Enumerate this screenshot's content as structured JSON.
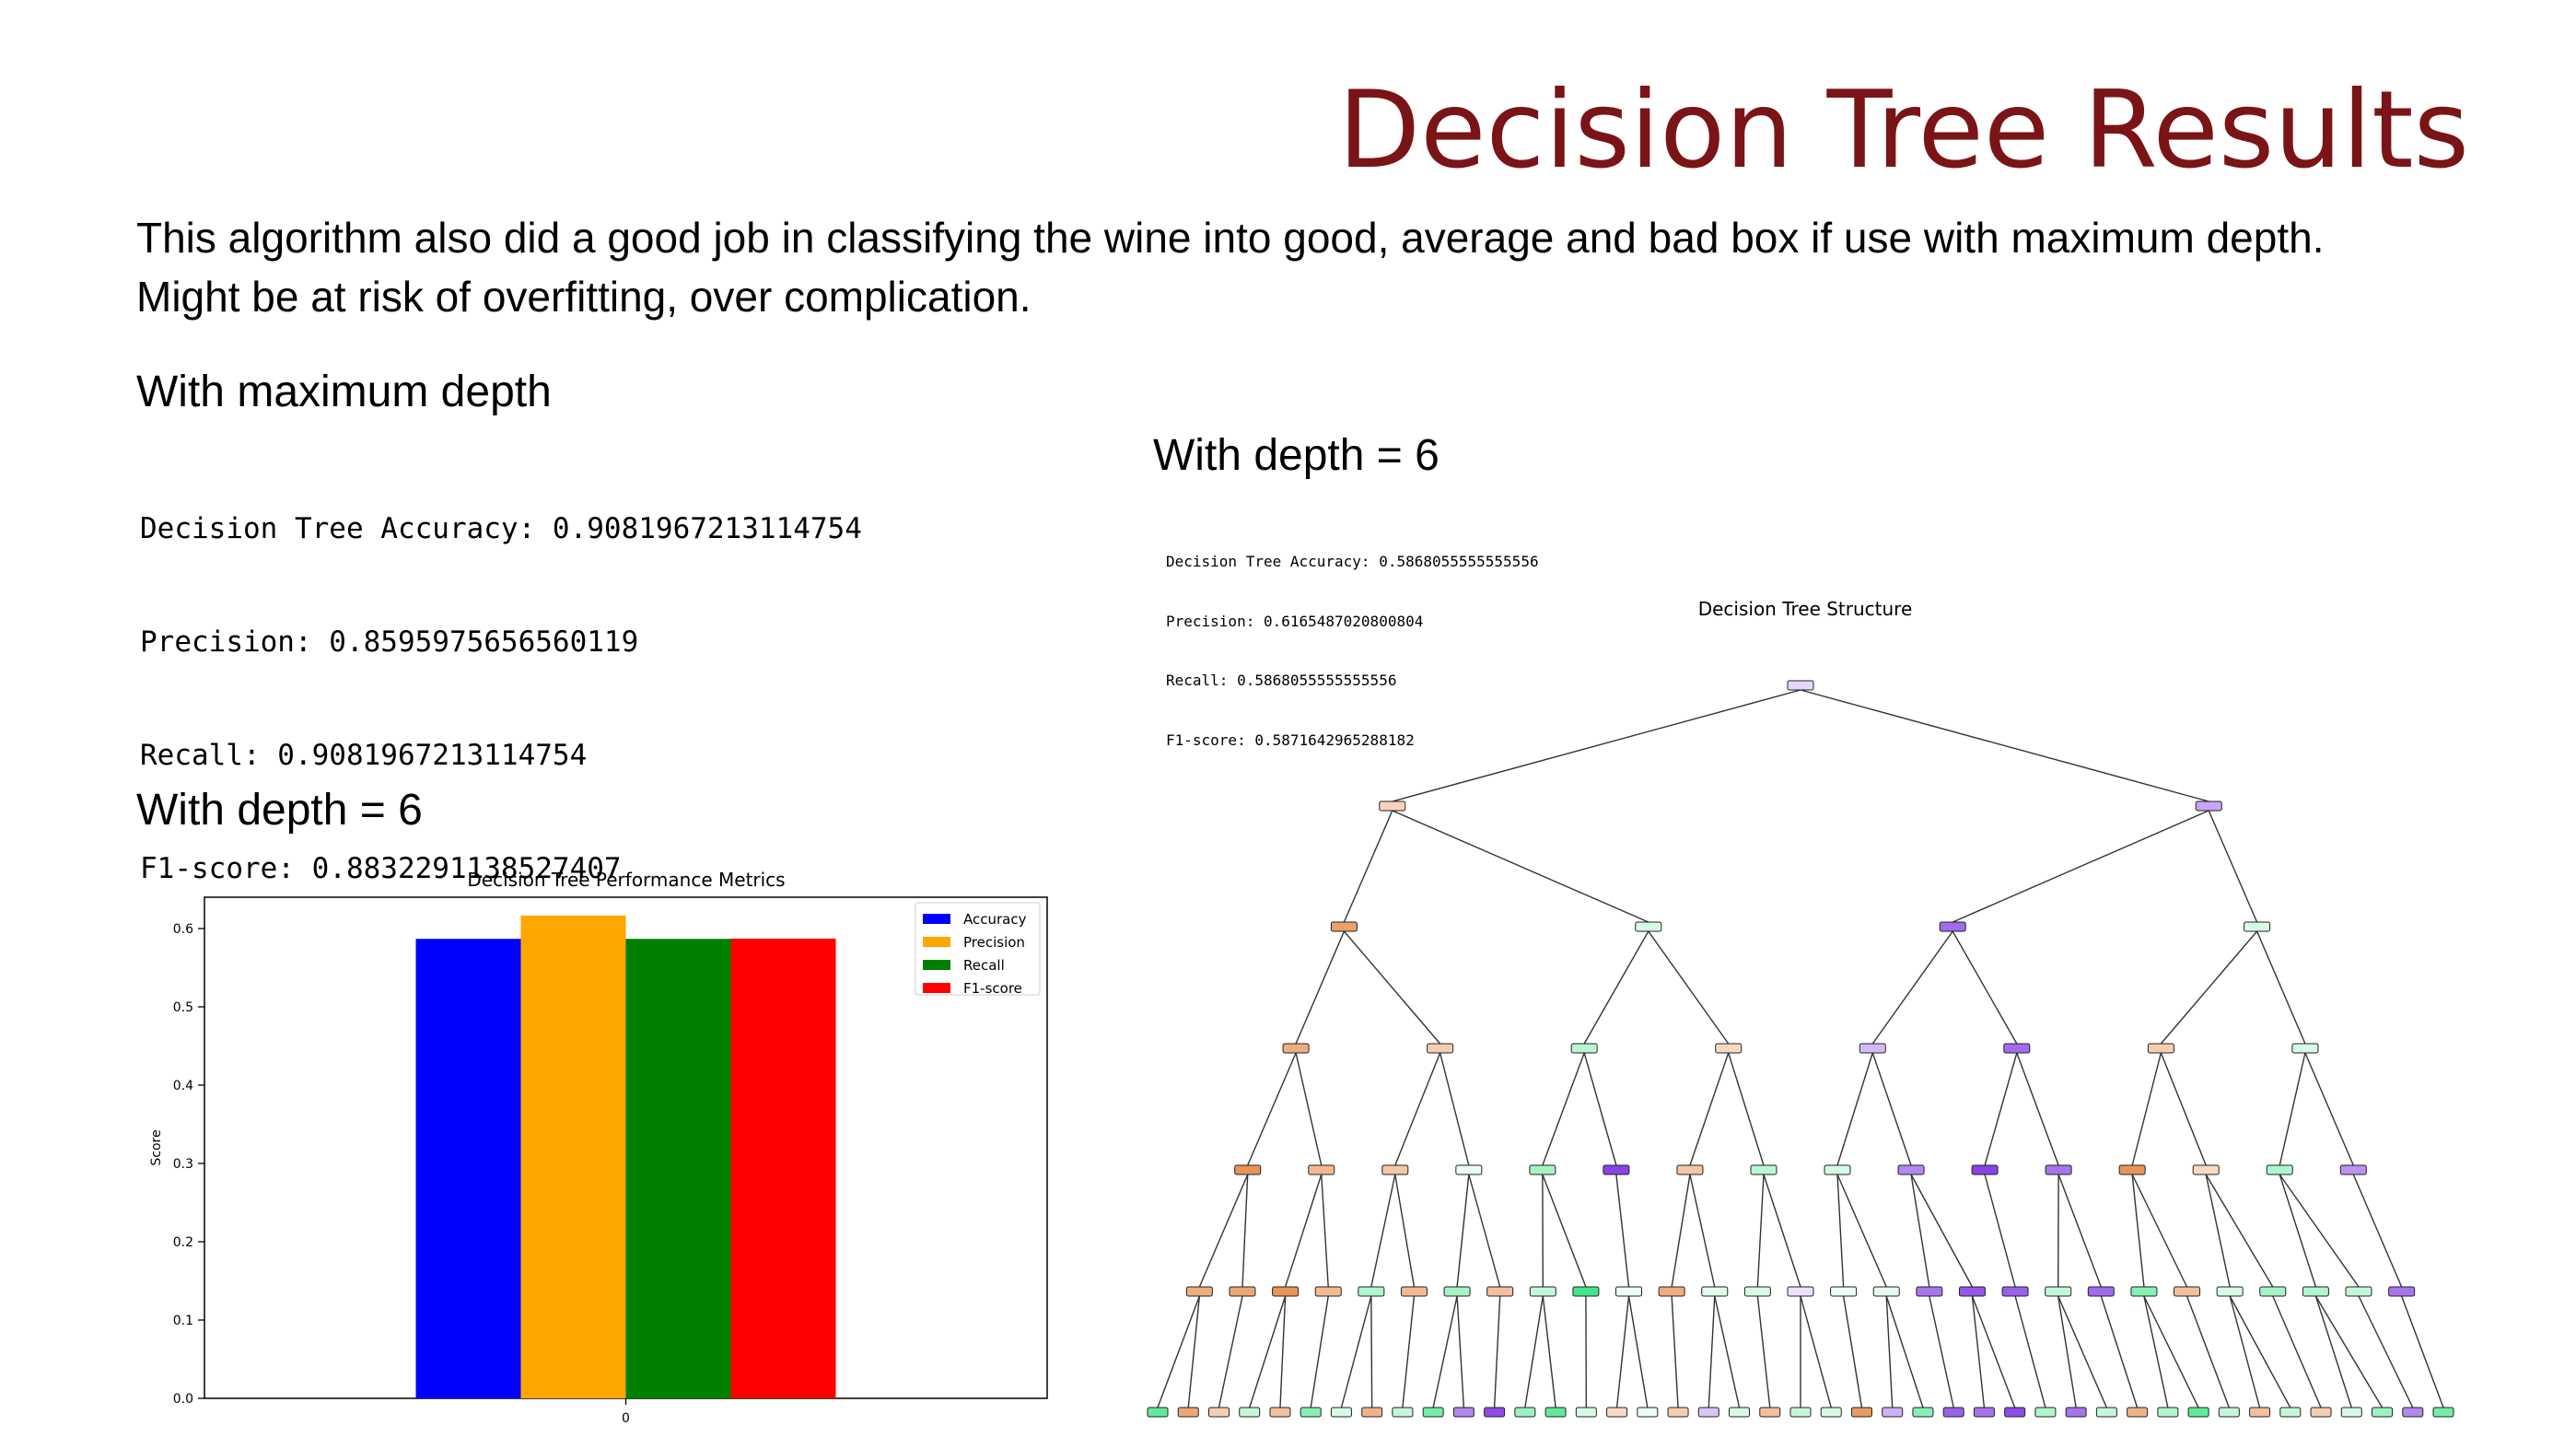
{
  "slide": {
    "title": "Decision Tree Results",
    "intro_line1": "This algorithm also did a good job in classifying the wine into good, average and bad box if use with maximum depth.",
    "intro_line2": "Might be at risk of overfitting, over complication.",
    "heading_max_depth": "With maximum depth",
    "heading_depth6_left": "With depth = 6",
    "heading_depth6_right": "With depth = 6",
    "max_depth_metrics": [
      "Decision Tree Accuracy: 0.9081967213114754",
      "Precision: 0.8595975656560119",
      "Recall: 0.9081967213114754",
      "F1-score: 0.8832291138527407"
    ],
    "depth6_metrics": [
      "Decision Tree Accuracy: 0.5868055555555556",
      "Precision: 0.6165487020800804",
      "Recall: 0.5868055555555556",
      "F1-score: 0.5871642965288182"
    ],
    "tree_title": "Decision Tree Structure"
  },
  "chart_data": {
    "type": "bar",
    "title": "Decision Tree Performance Metrics",
    "xlabel": "",
    "ylabel": "Score",
    "categories": [
      "0"
    ],
    "series": [
      {
        "name": "Accuracy",
        "values": [
          0.5868055555555556
        ],
        "color": "#0000ff"
      },
      {
        "name": "Precision",
        "values": [
          0.6165487020800804
        ],
        "color": "#ffa500"
      },
      {
        "name": "Recall",
        "values": [
          0.5868055555555556
        ],
        "color": "#008000"
      },
      {
        "name": "F1-score",
        "values": [
          0.5871642965288182
        ],
        "color": "#ff0000"
      }
    ],
    "ylim": [
      0,
      0.64
    ],
    "yticks": [
      "0.0",
      "0.1",
      "0.2",
      "0.3",
      "0.4",
      "0.5",
      "0.6"
    ],
    "legend": "top-right",
    "grid": false
  },
  "tree": {
    "colors": {
      "orange": "#e58139",
      "green": "#39e581",
      "purple": "#8139e5",
      "edge": "#333333"
    },
    "levels": [
      [
        [
          "p",
          0.2
        ]
      ],
      [
        [
          "o",
          0.35
        ],
        [
          "p",
          0.45
        ]
      ],
      [
        [
          "o",
          0.75
        ],
        [
          "g",
          0.2
        ],
        [
          "p",
          0.75
        ],
        [
          "g",
          0.2
        ]
      ],
      [
        [
          "o",
          0.65
        ],
        [
          "o",
          0.4
        ],
        [
          "g",
          0.35
        ],
        [
          "o",
          0.3
        ],
        [
          "p",
          0.35
        ],
        [
          "p",
          0.75
        ],
        [
          "o",
          0.4
        ],
        [
          "g",
          0.2
        ]
      ],
      [
        [
          "o",
          0.85
        ],
        [
          "o",
          0.55
        ],
        [
          "o",
          0.45
        ],
        [
          "g",
          0.1
        ],
        [
          "g",
          0.45
        ],
        [
          "p",
          0.95
        ],
        [
          "o",
          0.45
        ],
        [
          "g",
          0.35
        ],
        [
          "g",
          0.2
        ],
        [
          "p",
          0.6
        ],
        [
          "p",
          0.95
        ],
        [
          "p",
          0.7
        ],
        [
          "o",
          0.85
        ],
        [
          "o",
          0.3
        ],
        [
          "g",
          0.4
        ],
        [
          "p",
          0.55
        ]
      ],
      [
        [
          "o",
          0.65
        ],
        [
          "o",
          0.7
        ],
        [
          "o",
          0.85
        ],
        [
          "o",
          0.55
        ],
        [
          "g",
          0.4
        ],
        [
          "o",
          0.55
        ],
        [
          "g",
          0.45
        ],
        [
          "o",
          0.5
        ],
        [
          "g",
          0.3
        ],
        [
          "g",
          0.95
        ],
        [
          "g",
          0.1
        ],
        [
          "o",
          0.65
        ],
        [
          "g",
          0.15
        ],
        [
          "g",
          0.2
        ],
        [
          "p",
          0.15
        ],
        [
          "g",
          0.1
        ],
        [
          "g",
          0.15
        ],
        [
          "p",
          0.7
        ],
        [
          "p",
          0.85
        ],
        [
          "p",
          0.8
        ],
        [
          "g",
          0.3
        ],
        [
          "p",
          0.75
        ],
        [
          "g",
          0.6
        ],
        [
          "o",
          0.5
        ],
        [
          "g",
          0.2
        ],
        [
          "g",
          0.45
        ],
        [
          "g",
          0.4
        ],
        [
          "g",
          0.3
        ],
        [
          "p",
          0.7
        ]
      ],
      [
        [
          "g",
          0.8
        ],
        [
          "o",
          0.7
        ],
        [
          "o",
          0.4
        ],
        [
          "g",
          0.3
        ],
        [
          "o",
          0.5
        ],
        [
          "g",
          0.6
        ],
        [
          "g",
          0.2
        ],
        [
          "o",
          0.6
        ],
        [
          "g",
          0.3
        ],
        [
          "g",
          0.7
        ],
        [
          "p",
          0.6
        ],
        [
          "p",
          0.9
        ],
        [
          "g",
          0.5
        ],
        [
          "g",
          0.8
        ],
        [
          "g",
          0.2
        ],
        [
          "o",
          0.3
        ],
        [
          "g",
          0.1
        ],
        [
          "o",
          0.4
        ],
        [
          "p",
          0.3
        ],
        [
          "g",
          0.2
        ],
        [
          "o",
          0.5
        ],
        [
          "g",
          0.3
        ],
        [
          "g",
          0.2
        ],
        [
          "o",
          0.8
        ],
        [
          "p",
          0.4
        ],
        [
          "g",
          0.6
        ],
        [
          "p",
          0.8
        ],
        [
          "p",
          0.7
        ],
        [
          "p",
          0.9
        ],
        [
          "g",
          0.4
        ],
        [
          "p",
          0.7
        ],
        [
          "g",
          0.3
        ],
        [
          "o",
          0.6
        ],
        [
          "g",
          0.4
        ],
        [
          "g",
          0.8
        ],
        [
          "g",
          0.3
        ],
        [
          "o",
          0.5
        ],
        [
          "g",
          0.3
        ],
        [
          "o",
          0.4
        ],
        [
          "g",
          0.2
        ],
        [
          "g",
          0.5
        ],
        [
          "p",
          0.6
        ],
        [
          "g",
          0.7
        ]
      ]
    ]
  }
}
